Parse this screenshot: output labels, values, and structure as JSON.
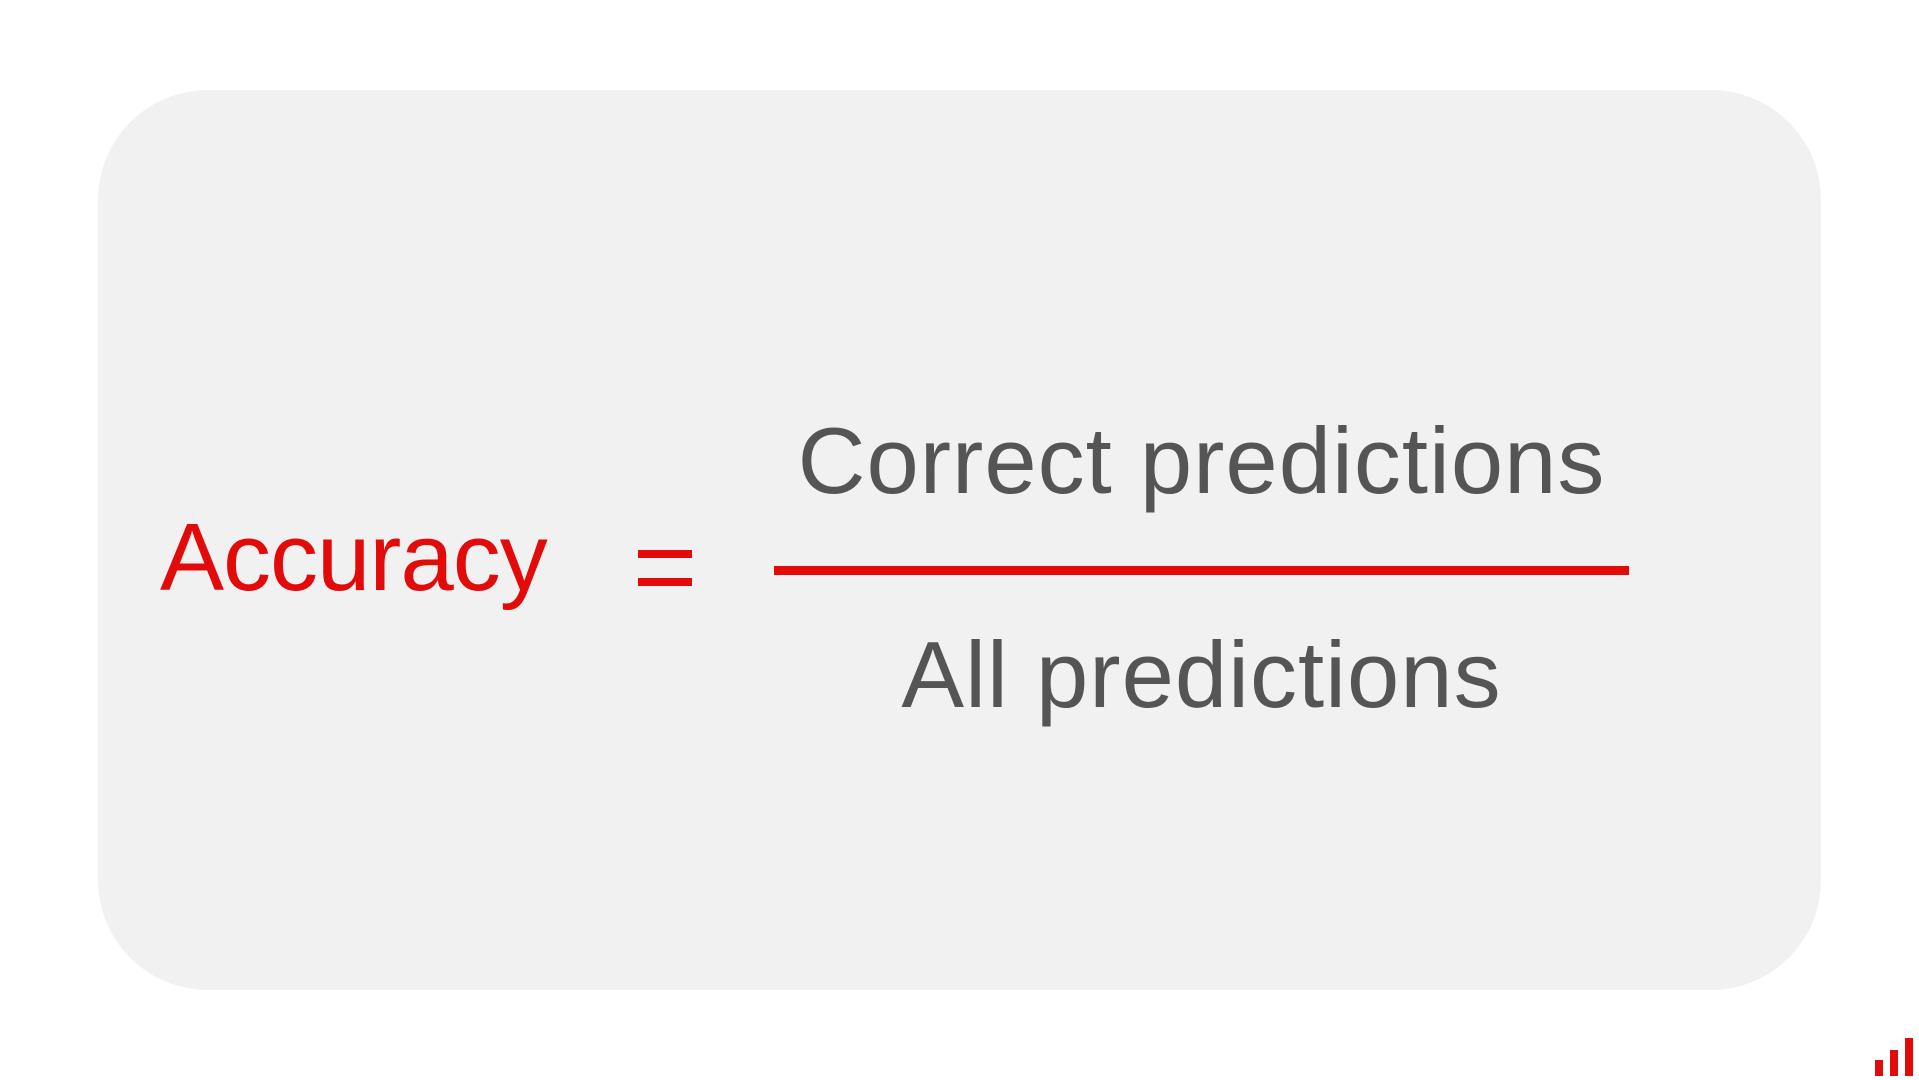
{
  "formula": {
    "lhs_label": "Accuracy",
    "operator": "=",
    "numerator": "Correct predictions",
    "denominator": "All predictions"
  },
  "colors": {
    "accent": "#e30a0a",
    "text": "#555555",
    "card_background": "#f1f1f1",
    "page_background": "#ffffff"
  },
  "icons": {
    "brand": "bar-chart-logo-icon"
  }
}
